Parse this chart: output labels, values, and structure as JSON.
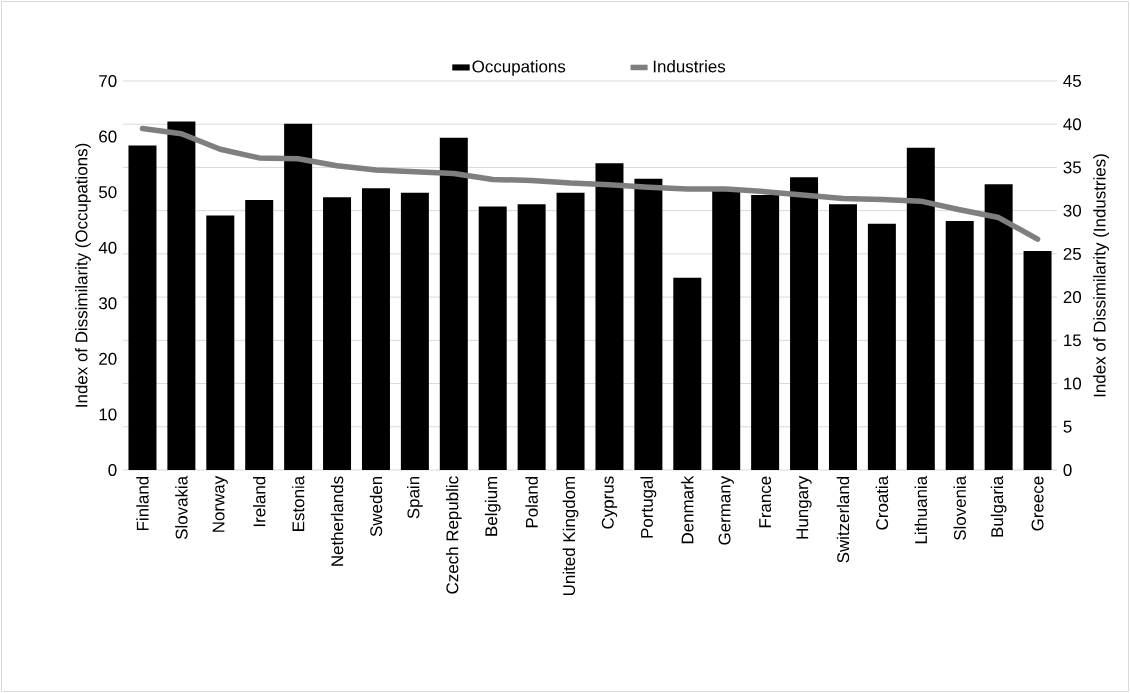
{
  "chart_data": {
    "type": "bar",
    "categories": [
      "Finland",
      "Slovakia",
      "Norway",
      "Ireland",
      "Estonia",
      "Netherlands",
      "Sweden",
      "Spain",
      "Czech Republic",
      "Belgium",
      "Poland",
      "United Kingdom",
      "Cyprus",
      "Portugal",
      "Denmark",
      "Germany",
      "France",
      "Hungary",
      "Switzerland",
      "Croatia",
      "Lithuania",
      "Slovenia",
      "Bulgaria",
      "Greece"
    ],
    "series": [
      {
        "name": "Occupations",
        "color": "#000000",
        "values": [
          58.4,
          62.7,
          45.8,
          48.6,
          62.3,
          49.1,
          50.7,
          49.9,
          59.8,
          47.4,
          47.8,
          49.9,
          55.2,
          52.4,
          34.6,
          50.5,
          49.5,
          52.7,
          47.8,
          44.3,
          58.0,
          44.8,
          51.4,
          39.4
        ]
      },
      {
        "name": "Industries",
        "type": "line",
        "axis": "y2",
        "color": "#7f7f7f",
        "values": [
          39.5,
          38.9,
          37.1,
          36.1,
          36.0,
          35.2,
          34.7,
          34.5,
          34.3,
          33.6,
          33.5,
          33.2,
          33.0,
          32.7,
          32.5,
          32.5,
          32.2,
          31.8,
          31.4,
          31.3,
          31.1,
          30.1,
          29.2,
          26.7
        ]
      }
    ],
    "ylabel": "Index of Dissimilarity (Occupations)",
    "y2label": "Index of Dissimilarity (Industries)",
    "ylim": [
      0,
      70
    ],
    "yticks": [
      0,
      10,
      20,
      30,
      40,
      50,
      60,
      70
    ],
    "y2lim": [
      0,
      45
    ],
    "y2ticks": [
      0,
      5,
      10,
      15,
      20,
      25,
      30,
      35,
      40,
      45
    ],
    "grid": true,
    "legend": "top"
  }
}
